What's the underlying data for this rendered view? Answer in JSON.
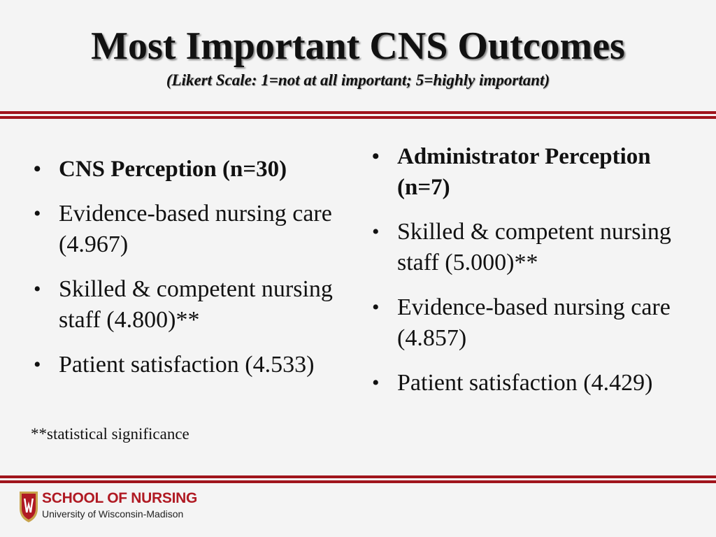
{
  "title": "Most Important CNS Outcomes",
  "subtitle": "(Likert Scale:  1=not at all important; 5=highly important)",
  "colors": {
    "accent": "#a0141c",
    "background": "#f4f4f4"
  },
  "left_column": {
    "heading": "CNS Perception (n=30)",
    "items": [
      "Evidence-based nursing care (4.967)",
      "Skilled & competent nursing staff (4.800)**",
      "Patient satisfaction (4.533)"
    ],
    "footnote": "**statistical significance"
  },
  "right_column": {
    "heading": "Administrator Perception (n=7)",
    "items": [
      "Skilled & competent nursing staff (5.000)**",
      "Evidence-based nursing care (4.857)",
      "Patient satisfaction (4.429)"
    ]
  },
  "logo": {
    "icon": "uw-crest-icon",
    "line1": "SCHOOL OF NURSING",
    "line2": "University of Wisconsin-Madison"
  }
}
